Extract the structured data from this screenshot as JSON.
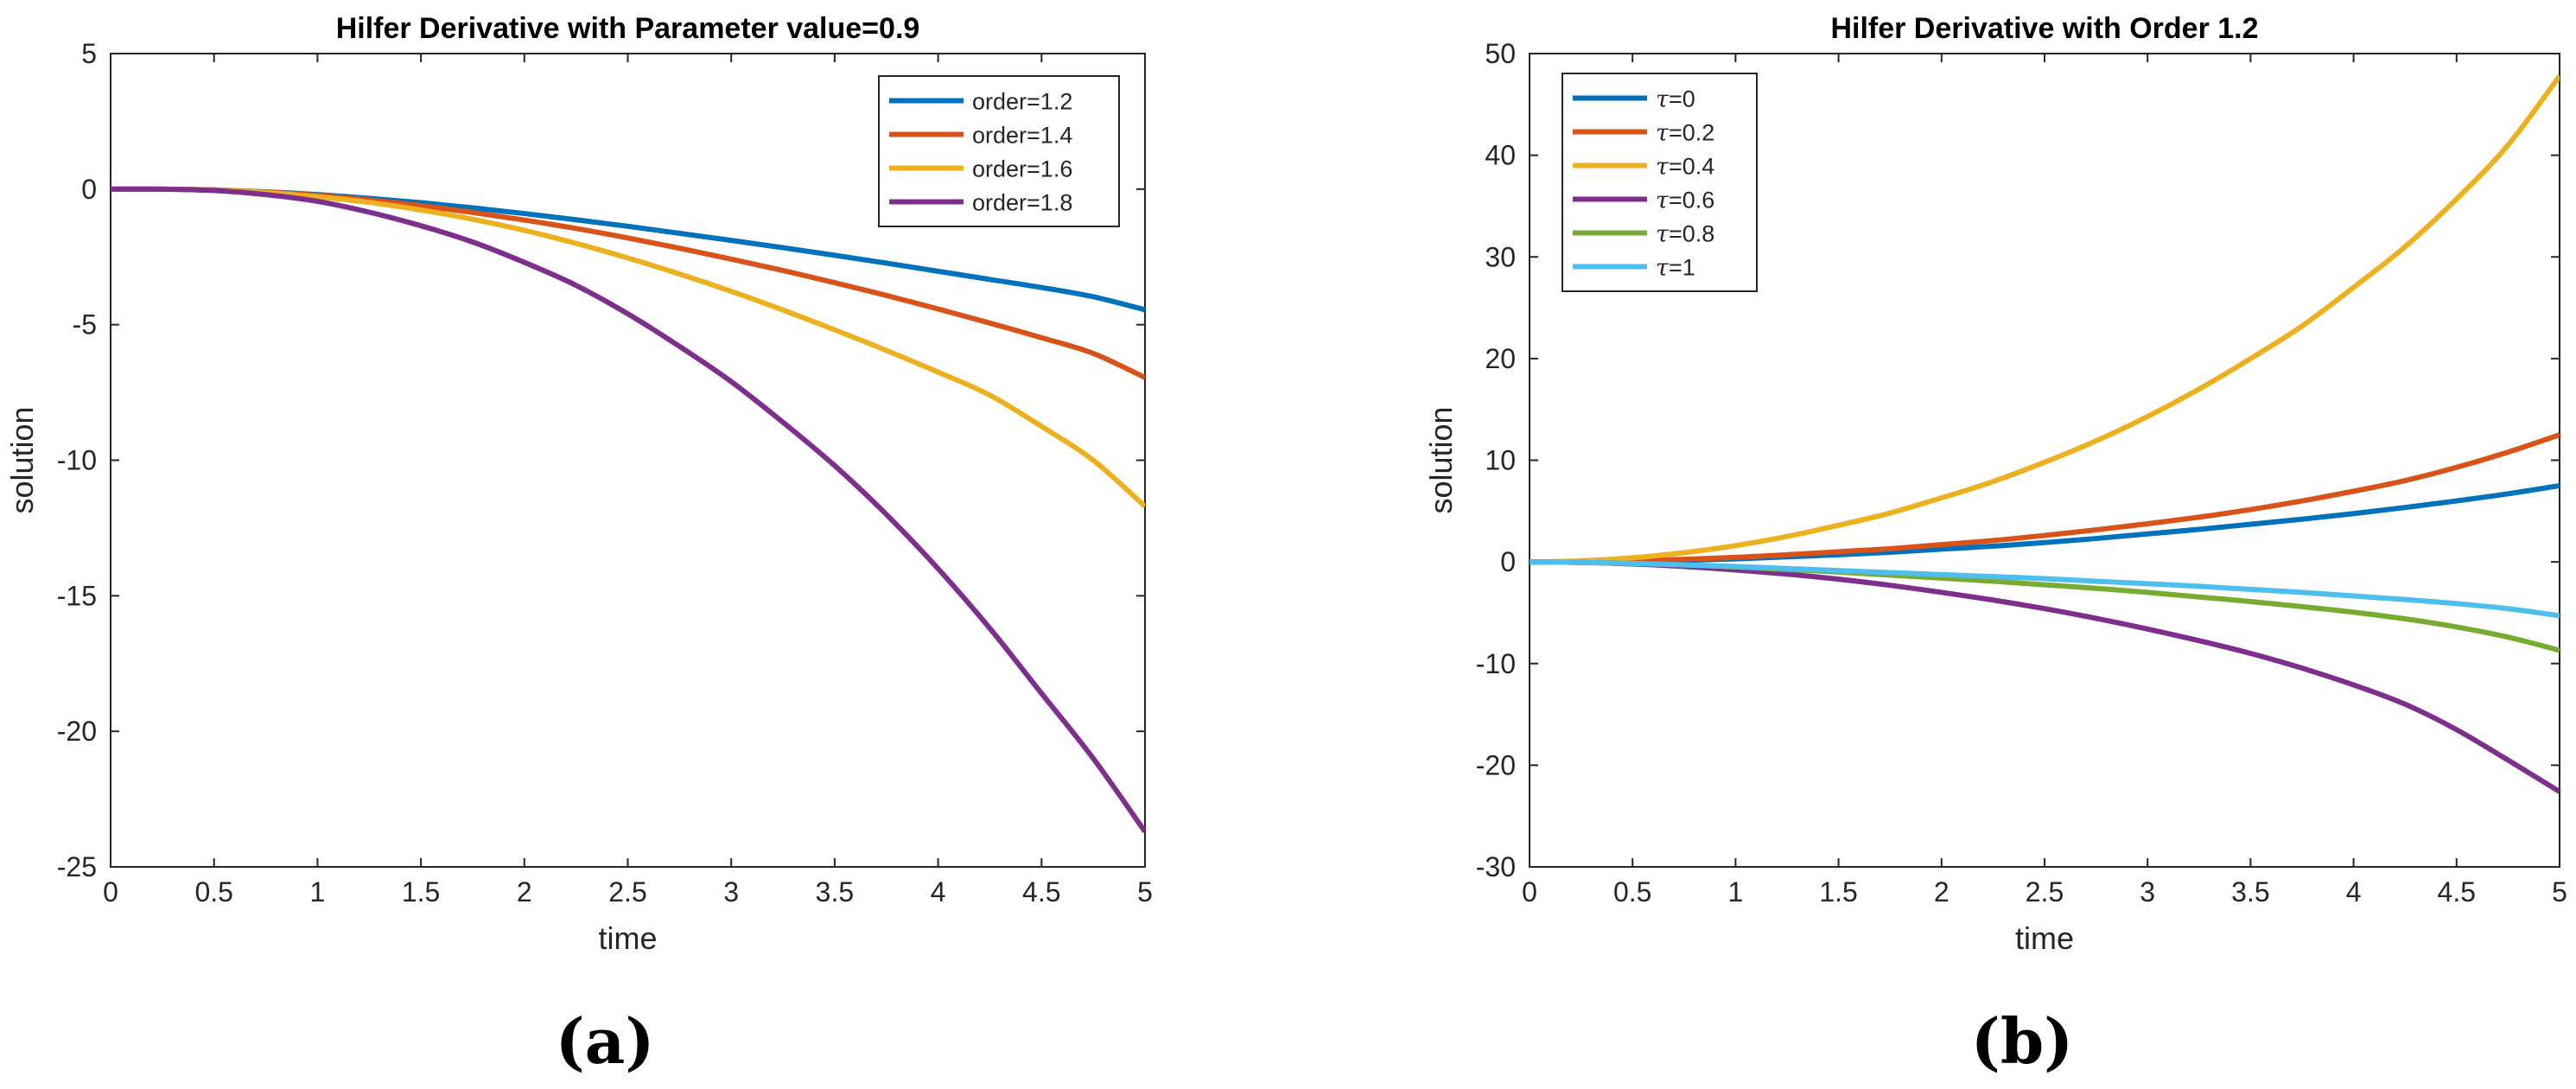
{
  "colors": {
    "blue": "#0072BD",
    "orange": "#D95319",
    "yellow": "#EDB120",
    "purple": "#7E2F8E",
    "green": "#77AC30",
    "cyan": "#4DBEEE"
  },
  "labels": {
    "a": "(a)",
    "b": "(b)"
  },
  "chart_data": [
    {
      "type": "line",
      "title": "Hilfer Derivative with Parameter value=0.9",
      "xlabel": "time",
      "ylabel": "solution",
      "xlim": [
        0,
        5
      ],
      "ylim": [
        -25,
        5
      ],
      "xticks": [
        0,
        0.5,
        1,
        1.5,
        2,
        2.5,
        3,
        3.5,
        4,
        4.5,
        5
      ],
      "xtick_labels": [
        "0",
        "0.5",
        "1",
        "1.5",
        "2",
        "2.5",
        "3",
        "3.5",
        "4",
        "4.5",
        "5"
      ],
      "yticks": [
        5,
        0,
        -5,
        -10,
        -15,
        -20,
        -25
      ],
      "ytick_labels": [
        "5",
        "0",
        "-5",
        "-10",
        "-15",
        "-20",
        "-25"
      ],
      "grid": false,
      "legend": "top-right",
      "x": [
        0,
        0.25,
        0.5,
        0.75,
        1,
        1.25,
        1.5,
        1.75,
        2,
        2.25,
        2.5,
        2.75,
        3,
        3.25,
        3.5,
        3.75,
        4,
        4.25,
        4.5,
        4.75,
        5
      ],
      "series": [
        {
          "name": "order=1.2",
          "color": "#0072BD",
          "values": [
            0,
            0.0,
            -0.03,
            -0.1,
            -0.2,
            -0.34,
            -0.5,
            -0.69,
            -0.9,
            -1.13,
            -1.37,
            -1.63,
            -1.89,
            -2.16,
            -2.44,
            -2.73,
            -3.03,
            -3.33,
            -3.63,
            -3.97,
            -4.45
          ]
        },
        {
          "name": "order=1.4",
          "color": "#D95319",
          "values": [
            0,
            0.0,
            -0.03,
            -0.11,
            -0.23,
            -0.4,
            -0.61,
            -0.86,
            -1.14,
            -1.45,
            -1.8,
            -2.18,
            -2.58,
            -3.0,
            -3.45,
            -3.92,
            -4.42,
            -4.94,
            -5.48,
            -6.06,
            -6.95
          ]
        },
        {
          "name": "order=1.6",
          "color": "#EDB120",
          "values": [
            0,
            0.0,
            -0.04,
            -0.13,
            -0.28,
            -0.49,
            -0.77,
            -1.11,
            -1.52,
            -2.0,
            -2.54,
            -3.13,
            -3.77,
            -4.46,
            -5.19,
            -5.95,
            -6.75,
            -7.6,
            -8.75,
            -10.0,
            -11.7
          ]
        },
        {
          "name": "order=1.8",
          "color": "#7E2F8E",
          "values": [
            0,
            0.0,
            -0.05,
            -0.2,
            -0.45,
            -0.85,
            -1.35,
            -1.95,
            -2.7,
            -3.55,
            -4.6,
            -5.8,
            -7.1,
            -8.6,
            -10.2,
            -12.0,
            -14.0,
            -16.2,
            -18.6,
            -21.0,
            -23.7
          ]
        }
      ]
    },
    {
      "type": "line",
      "title": "Hilfer Derivative with Order 1.2",
      "xlabel": "time",
      "ylabel": "solution",
      "xlim": [
        0,
        5
      ],
      "ylim": [
        -30,
        50
      ],
      "xticks": [
        0,
        0.5,
        1,
        1.5,
        2,
        2.5,
        3,
        3.5,
        4,
        4.5,
        5
      ],
      "xtick_labels": [
        "0",
        "0.5",
        "1",
        "1.5",
        "2",
        "2.5",
        "3",
        "3.5",
        "4",
        "4.5",
        "5"
      ],
      "yticks": [
        50,
        40,
        30,
        20,
        10,
        0,
        -10,
        -20,
        -30
      ],
      "ytick_labels": [
        "50",
        "40",
        "30",
        "20",
        "10",
        "0",
        "-10",
        "-20",
        "-30"
      ],
      "grid": false,
      "legend": "top-left",
      "x": [
        0,
        0.25,
        0.5,
        0.75,
        1,
        1.25,
        1.5,
        1.75,
        2,
        2.25,
        2.5,
        2.75,
        3,
        3.25,
        3.5,
        3.75,
        4,
        4.25,
        4.5,
        4.75,
        5
      ],
      "series": [
        {
          "name": "τ=0",
          "prefix": "τ",
          "suffix": "=0",
          "color": "#0072BD",
          "values": [
            0,
            0.0,
            0.05,
            0.15,
            0.3,
            0.5,
            0.7,
            0.95,
            1.25,
            1.55,
            1.9,
            2.3,
            2.75,
            3.2,
            3.7,
            4.2,
            4.75,
            5.35,
            6.0,
            6.7,
            7.5
          ]
        },
        {
          "name": "τ=0.2",
          "prefix": "τ",
          "suffix": "=0.2",
          "color": "#D95319",
          "values": [
            0,
            0.0,
            0.1,
            0.25,
            0.45,
            0.7,
            1.0,
            1.3,
            1.7,
            2.1,
            2.6,
            3.15,
            3.75,
            4.4,
            5.15,
            6.0,
            6.95,
            8.0,
            9.3,
            10.8,
            12.5
          ]
        },
        {
          "name": "τ=0.4",
          "prefix": "τ",
          "suffix": "=0.4",
          "color": "#EDB120",
          "values": [
            0,
            0.1,
            0.4,
            0.9,
            1.6,
            2.5,
            3.6,
            4.8,
            6.3,
            7.9,
            9.8,
            11.9,
            14.3,
            17.0,
            20.0,
            23.2,
            27.0,
            31.0,
            35.7,
            41.0,
            47.8
          ]
        },
        {
          "name": "τ=0.6",
          "prefix": "τ",
          "suffix": "=0.6",
          "color": "#7E2F8E",
          "values": [
            0,
            -0.05,
            -0.2,
            -0.45,
            -0.8,
            -1.2,
            -1.7,
            -2.3,
            -3.0,
            -3.75,
            -4.6,
            -5.55,
            -6.6,
            -7.75,
            -9.0,
            -10.45,
            -12.1,
            -14.0,
            -16.5,
            -19.5,
            -22.6
          ]
        },
        {
          "name": "τ=0.8",
          "prefix": "τ",
          "suffix": "=0.8",
          "color": "#77AC30",
          "values": [
            0,
            -0.05,
            -0.15,
            -0.3,
            -0.5,
            -0.75,
            -1.0,
            -1.3,
            -1.6,
            -1.9,
            -2.25,
            -2.6,
            -3.0,
            -3.45,
            -3.9,
            -4.4,
            -4.95,
            -5.6,
            -6.4,
            -7.4,
            -8.7
          ]
        },
        {
          "name": "τ=1",
          "prefix": "τ",
          "suffix": "=1",
          "color": "#4DBEEE",
          "values": [
            0,
            -0.05,
            -0.15,
            -0.3,
            -0.45,
            -0.65,
            -0.85,
            -1.05,
            -1.25,
            -1.45,
            -1.65,
            -1.9,
            -2.15,
            -2.4,
            -2.7,
            -3.0,
            -3.35,
            -3.7,
            -4.1,
            -4.6,
            -5.3
          ]
        }
      ]
    }
  ]
}
